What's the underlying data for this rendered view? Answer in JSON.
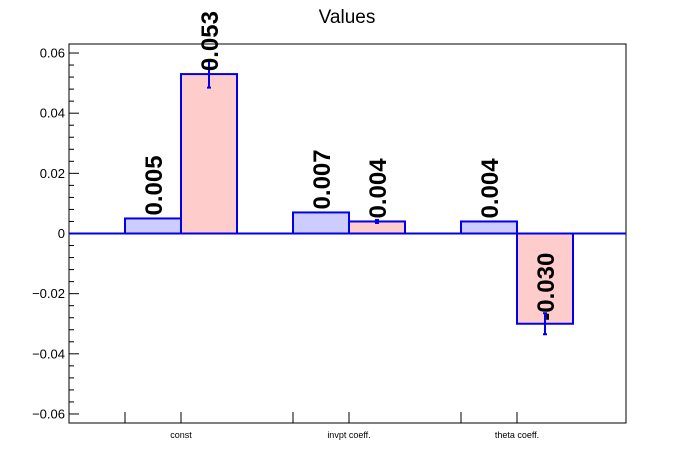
{
  "chart_data": {
    "type": "bar",
    "title": "Values",
    "xlabel": "",
    "ylabel": "",
    "ylim": [
      -0.063,
      0.063
    ],
    "yticks": [
      -0.06,
      -0.04,
      -0.02,
      0,
      0.02,
      0.04,
      0.06
    ],
    "ytick_labels": [
      "−0.06",
      "−0.04",
      "−0.02",
      "0",
      "0.02",
      "0.04",
      "0.06"
    ],
    "categories": [
      "const",
      "invpt coeff.",
      "theta coeff."
    ],
    "series": [
      {
        "values": [
          0.005,
          0.007,
          0.004
        ],
        "labels": [
          "0.005",
          "0.007",
          "0.004"
        ],
        "errors": [
          0,
          0,
          0
        ],
        "fill": "#ccccff",
        "edge": "#0000ee"
      },
      {
        "values": [
          0.053,
          0.004,
          -0.03
        ],
        "labels": [
          "0.053",
          "0.004",
          "-0.030"
        ],
        "errors": [
          0.0045,
          0.0005,
          0.0035
        ],
        "fill": "#ffcccc",
        "edge": "#0000ee"
      }
    ],
    "grid": false,
    "legend": "none"
  }
}
